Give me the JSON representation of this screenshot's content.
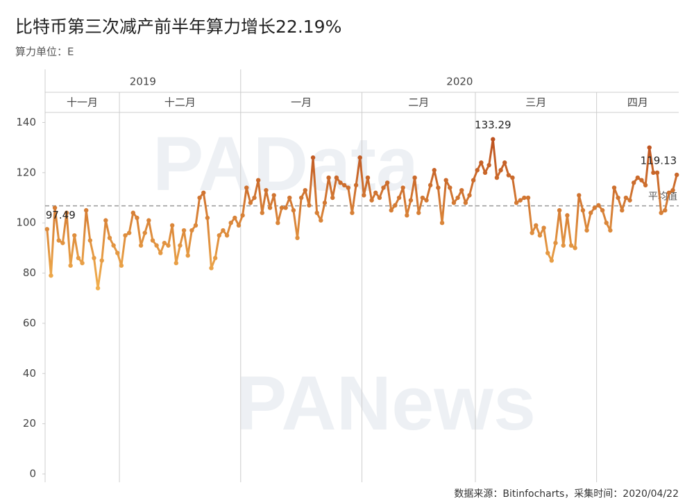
{
  "chart_data": {
    "type": "line",
    "title": "比特币第三次减产前半年算力增长22.19%",
    "subtitle": "算力单位：E",
    "ylim": [
      0,
      144
    ],
    "yticks": [
      0,
      20,
      40,
      60,
      80,
      100,
      120,
      140
    ],
    "color_low": "#f2b14f",
    "color_high": "#b8481a",
    "average": {
      "value": 106.8,
      "label": "平均值"
    },
    "periods": [
      {
        "year": "2019",
        "months": [
          {
            "month": "十一月",
            "values": [
              97.49,
              79,
              106,
              93,
              92,
              104,
              83,
              95,
              86,
              84,
              105,
              93,
              86,
              74,
              85,
              101,
              94,
              91,
              88
            ]
          },
          {
            "month": "十二月",
            "values": [
              83,
              95,
              96,
              104,
              102,
              91,
              96,
              101,
              93,
              91,
              88,
              92,
              91,
              99,
              84,
              91,
              97,
              87,
              97,
              99,
              110,
              112,
              102,
              82,
              86,
              95,
              97,
              95,
              100,
              102,
              99
            ]
          }
        ]
      },
      {
        "year": "2020",
        "months": [
          {
            "month": "一月",
            "values": [
              103,
              114,
              108,
              110,
              117,
              104,
              113,
              106,
              111,
              100,
              106,
              106,
              110,
              105,
              94,
              110,
              113,
              107,
              126,
              104,
              101,
              108,
              118,
              110,
              118,
              116,
              115,
              114,
              104,
              115,
              126
            ]
          },
          {
            "month": "二月",
            "values": [
              111,
              118,
              109,
              112,
              110,
              114,
              116,
              105,
              107,
              110,
              114,
              103,
              109,
              118,
              104,
              110,
              109,
              115,
              121,
              114,
              100,
              117,
              114,
              108,
              110,
              113,
              108,
              111,
              117
            ]
          },
          {
            "month": "三月",
            "values": [
              121,
              124,
              120,
              123,
              133.29,
              118,
              121,
              124,
              119,
              118,
              108,
              109,
              110,
              110,
              96,
              99,
              95,
              98,
              88,
              85,
              92,
              105,
              91,
              103,
              91,
              90,
              111,
              105,
              97,
              104,
              106
            ]
          },
          {
            "month": "四月",
            "values": [
              107,
              105,
              100,
              97,
              114,
              110,
              105,
              110,
              109,
              116,
              118,
              117,
              115,
              130,
              120,
              120,
              104,
              105,
              112,
              113,
              119.13
            ]
          }
        ]
      }
    ],
    "watermarks": [
      "PAData",
      "PANews"
    ],
    "source": "数据来源：Bitinfocharts，采集时间：2020/04/22"
  }
}
